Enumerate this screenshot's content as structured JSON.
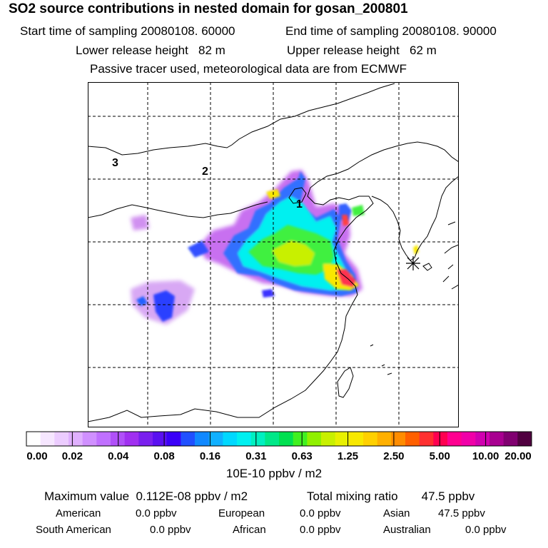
{
  "header": {
    "title": "SO2 source contributions in nested domain for gosan_200801",
    "start_label": "Start time of sampling 20080108. 60000",
    "end_label": "End time of sampling 20080108. 90000",
    "lower_label": "Lower release height   82 m",
    "upper_label": "Upper release height   62 m",
    "note": "Passive tracer used, meteorological data are from ECMWF"
  },
  "map": {
    "region_labels": [
      "1",
      "2",
      "3"
    ],
    "receptor_icon": "asterisk-icon"
  },
  "colorbar": {
    "ticks": [
      "0.00",
      "0.02",
      "0.04",
      "0.08",
      "0.16",
      "0.31",
      "0.63",
      "1.25",
      "2.50",
      "5.00",
      "10.00",
      "20.00"
    ],
    "colors": [
      "#ffffff",
      "#f6e6ff",
      "#ecccff",
      "#e0b0ff",
      "#d090ff",
      "#c070ff",
      "#b050f8",
      "#a030f0",
      "#7a20ee",
      "#5a10f0",
      "#3a00f8",
      "#2050ff",
      "#1088ff",
      "#10b0ff",
      "#00d8ff",
      "#00f0f0",
      "#00f0c0",
      "#00e888",
      "#00e050",
      "#40f020",
      "#90f000",
      "#c8f000",
      "#e8f000",
      "#f8e800",
      "#ffd000",
      "#ffb000",
      "#ff8c00",
      "#ff6000",
      "#ff3030",
      "#ff0050",
      "#ff0090",
      "#f000a8",
      "#d000b0",
      "#a80090",
      "#800070",
      "#500040"
    ],
    "unit_label": "10E-10 ppbv / m2"
  },
  "stats": {
    "max_label": "Maximum value  0.112E-08 ppbv / m2",
    "total_label": "Total mixing ratio       47.5 ppbv",
    "american_label": "American",
    "american_value": "0.0 ppbv",
    "european_label": "European",
    "european_value": "0.0 ppbv",
    "asian_label": "Asian",
    "asian_value": "47.5 ppbv",
    "south_american_label": "South American",
    "south_american_value": "0.0 ppbv",
    "african_label": "African",
    "african_value": "0.0 ppbv",
    "australian_label": "Australian",
    "australian_value": "0.0 ppbv"
  }
}
